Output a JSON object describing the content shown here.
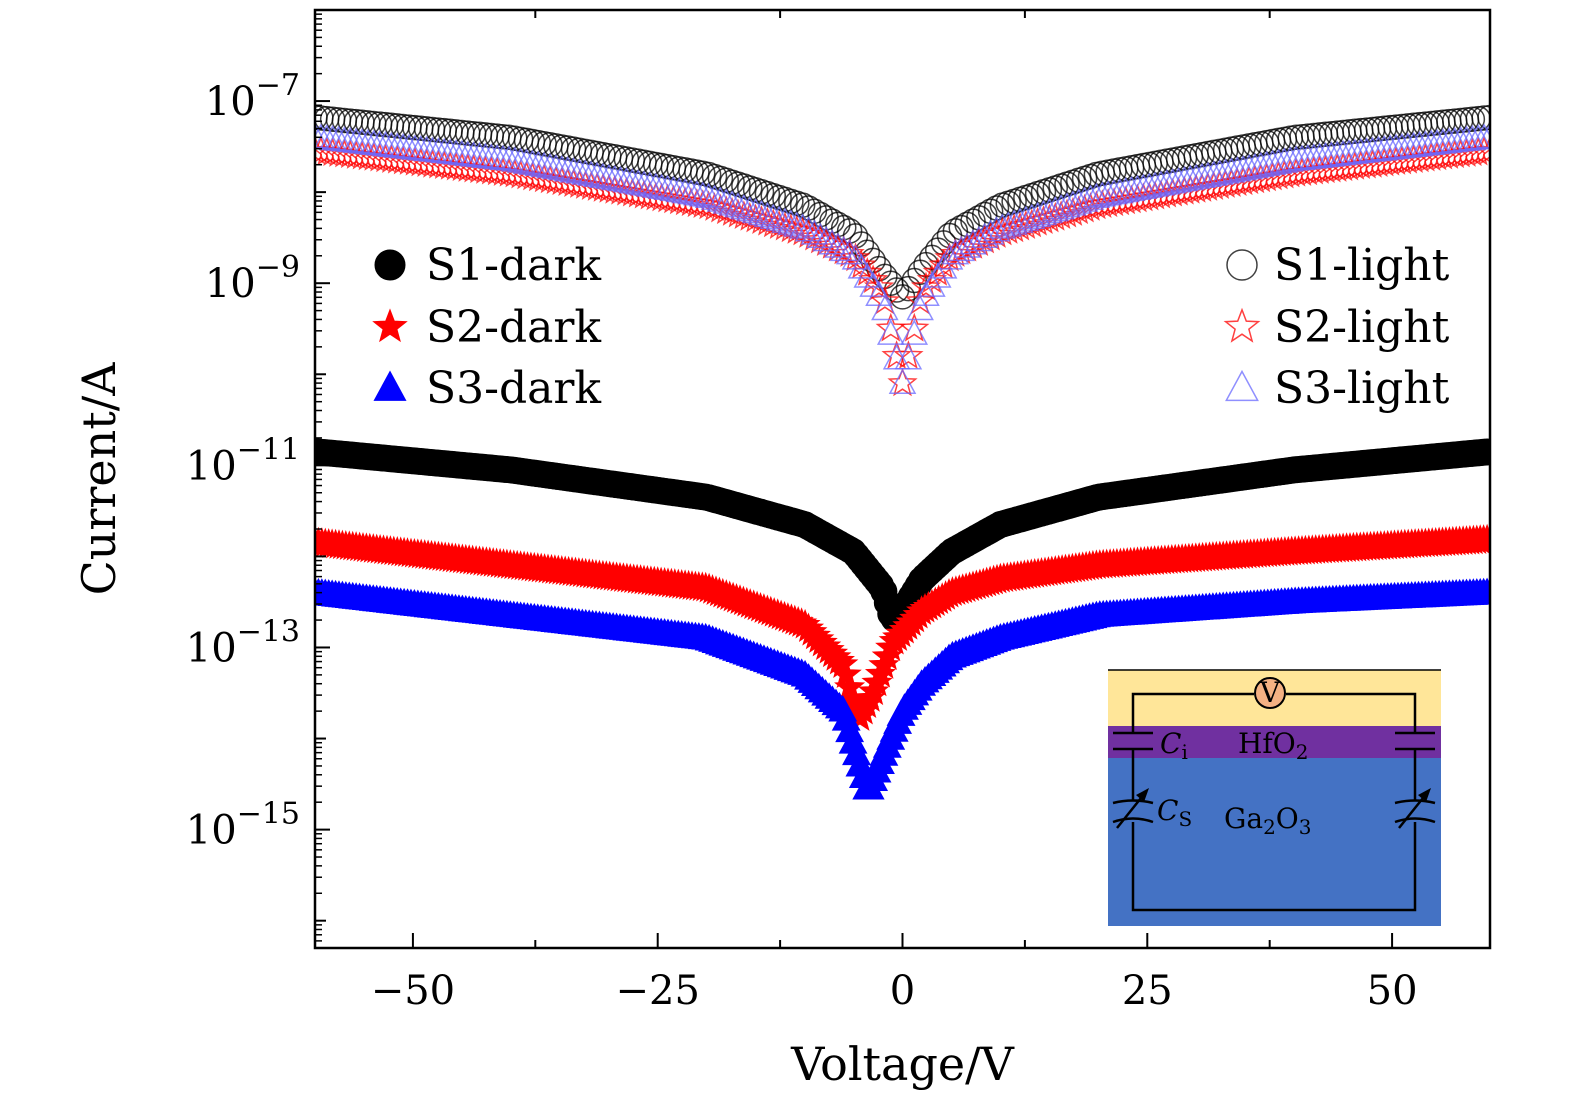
{
  "chart_data": {
    "type": "scatter",
    "xlabel": "Voltage/V",
    "ylabel": "Current/A",
    "xscale": "linear",
    "yscale": "log",
    "xlim": [
      -60,
      60
    ],
    "ylim_log10": [
      -16.3,
      -6.0
    ],
    "x_ticks": [
      -50,
      -25,
      0,
      25,
      50
    ],
    "x_tick_labels": [
      "−50",
      "−25",
      "0",
      "25",
      "50"
    ],
    "y_ticks_log10": [
      -7,
      -9,
      -11,
      -13,
      -15
    ],
    "y_tick_labels": [
      {
        "base": "10",
        "exp": "−7"
      },
      {
        "base": "10",
        "exp": "−9"
      },
      {
        "base": "10",
        "exp": "−11"
      },
      {
        "base": "10",
        "exp": "−13"
      },
      {
        "base": "10",
        "exp": "−15"
      }
    ],
    "legend": [
      {
        "label": "S1-dark",
        "marker": "circle-filled",
        "color": "#000000",
        "position": "left"
      },
      {
        "label": "S2-dark",
        "marker": "star-filled",
        "color": "#ff0000",
        "position": "left"
      },
      {
        "label": "S3-dark",
        "marker": "triangle-filled",
        "color": "#0000ff",
        "position": "left"
      },
      {
        "label": "S1-light",
        "marker": "circle-open",
        "color": "#000000",
        "position": "right"
      },
      {
        "label": "S2-light",
        "marker": "star-open",
        "color": "#ff0000",
        "position": "right"
      },
      {
        "label": "S3-light",
        "marker": "triangle-open",
        "color": "#6a6aff",
        "position": "right"
      }
    ],
    "series": [
      {
        "name": "S1-light",
        "marker": "circle-open",
        "color": "#000000",
        "x": [
          -60,
          -40,
          -20,
          -10,
          -5,
          -2,
          0,
          2,
          5,
          10,
          20,
          40,
          60
        ],
        "y_log10": [
          -7.18,
          -7.4,
          -7.8,
          -8.15,
          -8.45,
          -8.9,
          -9.15,
          -8.85,
          -8.45,
          -8.15,
          -7.8,
          -7.4,
          -7.18
        ]
      },
      {
        "name": "S2-light",
        "marker": "star-open",
        "color": "#ff0000",
        "x": [
          -60,
          -40,
          -20,
          -10,
          -5,
          -2,
          0,
          2,
          5,
          10,
          20,
          40,
          60
        ],
        "y_log10": [
          -7.55,
          -7.8,
          -8.15,
          -8.45,
          -8.7,
          -9.1,
          -10.1,
          -9.1,
          -8.7,
          -8.45,
          -8.15,
          -7.8,
          -7.55
        ]
      },
      {
        "name": "S3-light",
        "marker": "triangle-open",
        "color": "#6a6aff",
        "x": [
          -60,
          -40,
          -20,
          -10,
          -5,
          -2,
          0,
          2,
          5,
          10,
          20,
          40,
          60
        ],
        "y_log10": [
          -7.4,
          -7.65,
          -8.05,
          -8.4,
          -8.7,
          -9.2,
          -10.1,
          -9.2,
          -8.7,
          -8.4,
          -8.05,
          -7.65,
          -7.4
        ]
      },
      {
        "name": "S1-dark",
        "marker": "circle-filled",
        "color": "#000000",
        "x": [
          -60,
          -40,
          -20,
          -10,
          -5,
          -2,
          -1,
          0,
          2,
          5,
          10,
          20,
          40,
          60
        ],
        "y_log10": [
          -10.85,
          -11.05,
          -11.35,
          -11.65,
          -11.95,
          -12.35,
          -12.7,
          -12.6,
          -12.25,
          -11.95,
          -11.65,
          -11.35,
          -11.05,
          -10.85
        ]
      },
      {
        "name": "S2-dark",
        "marker": "star-filled",
        "color": "#ff0000",
        "x": [
          -60,
          -40,
          -20,
          -10,
          -6,
          -4.5,
          -3,
          -1,
          2,
          5,
          10,
          20,
          40,
          60
        ],
        "y_log10": [
          -11.85,
          -12.1,
          -12.35,
          -12.75,
          -13.2,
          -13.8,
          -13.5,
          -12.95,
          -12.6,
          -12.4,
          -12.25,
          -12.1,
          -11.95,
          -11.82
        ]
      },
      {
        "name": "S3-dark",
        "marker": "triangle-filled",
        "color": "#0000ff",
        "x": [
          -60,
          -40,
          -20,
          -10,
          -6,
          -3.5,
          -2,
          0,
          2,
          5,
          10,
          20,
          40,
          60
        ],
        "y_log10": [
          -12.4,
          -12.65,
          -12.9,
          -13.3,
          -13.7,
          -14.6,
          -14.2,
          -13.7,
          -13.4,
          -13.1,
          -12.9,
          -12.65,
          -12.5,
          -12.4
        ]
      }
    ],
    "inset": {
      "layers": [
        {
          "name": "HfO₂",
          "base": "HfO",
          "sub": "2",
          "color": "#7030a0"
        },
        {
          "name": "Ga₂O₃",
          "color": "#4472c4"
        }
      ],
      "top_color": "#ffe699",
      "voltmeter_label": "V",
      "capacitor_labels": [
        {
          "base": "C",
          "sub": "i"
        },
        {
          "base": "C",
          "sub": "S"
        }
      ],
      "ga2o3_label": {
        "p1": "Ga",
        "s1": "2",
        "p2": "O",
        "s2": "3"
      }
    }
  }
}
